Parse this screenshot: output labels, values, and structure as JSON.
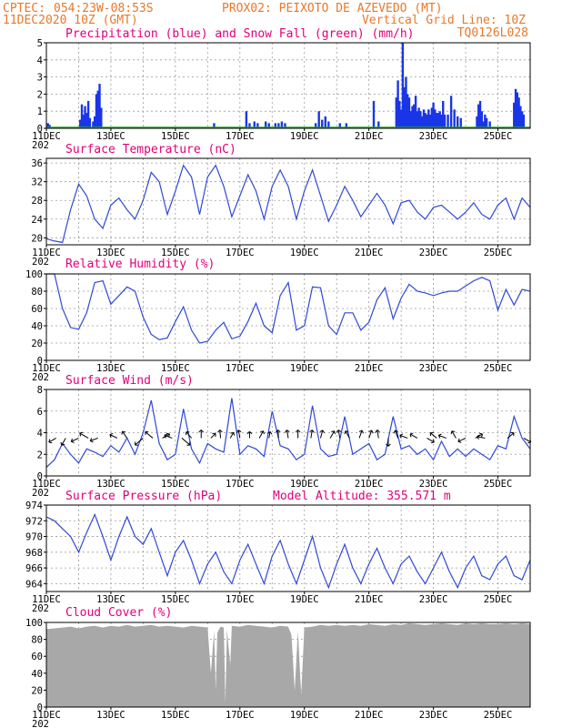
{
  "header": {
    "line1_left": "CPTEC:",
    "line1_coords": "054:23W-08:53S",
    "line1_station": "PROX02: PEIXOTO DE AZEVEDO (MT)",
    "line2_date": "11DEC2020 10Z (GMT)",
    "line2_grid": "Vertical Grid Line: 10Z",
    "line3_code": "TQ0126L028"
  },
  "x_axis": {
    "labels": [
      "11DEC",
      "13DEC",
      "15DEC",
      "17DEC",
      "19DEC",
      "21DEC",
      "23DEC",
      "25DEC"
    ],
    "year_stub": "202",
    "days": 15
  },
  "colors": {
    "precip": "#1a35e8",
    "snow": "#22aa22",
    "line": "#3048d8",
    "arrow": "#000000",
    "cloud": "#a8a8a8",
    "header": "#e8782a",
    "panel_title": "#e0007a"
  },
  "chart_data": [
    {
      "type": "bar",
      "title": "Precipitation (blue) and Snow Fall (green) (mm/h)",
      "ylim": [
        0,
        5
      ],
      "yticks": [
        0,
        1,
        2,
        3,
        4,
        5
      ],
      "series": [
        {
          "name": "Precipitation",
          "x": [
            0.05,
            0.1,
            1.05,
            1.1,
            1.15,
            1.2,
            1.25,
            1.3,
            1.35,
            1.45,
            1.5,
            1.55,
            1.6,
            1.65,
            1.7,
            5.2,
            6.2,
            6.3,
            6.45,
            6.55,
            6.8,
            6.9,
            7.1,
            7.2,
            7.3,
            7.4,
            8.35,
            8.45,
            8.55,
            8.65,
            8.75,
            9.1,
            9.3,
            10.15,
            10.3,
            10.85,
            10.9,
            10.95,
            11.0,
            11.05,
            11.1,
            11.15,
            11.2,
            11.25,
            11.3,
            11.35,
            11.4,
            11.45,
            11.5,
            11.55,
            11.6,
            11.65,
            11.7,
            11.75,
            11.8,
            11.85,
            11.9,
            11.95,
            12.0,
            12.05,
            12.1,
            12.15,
            12.2,
            12.25,
            12.3,
            12.35,
            12.45,
            12.55,
            12.65,
            12.75,
            12.85,
            13.35,
            13.4,
            13.45,
            13.5,
            13.55,
            13.6,
            13.65,
            13.75,
            14.5,
            14.55,
            14.6,
            14.65,
            14.7,
            14.75,
            14.8
          ],
          "values": [
            0.3,
            0.2,
            0.5,
            1.4,
            0.8,
            1.3,
            0.9,
            1.6,
            0.6,
            0.4,
            0.7,
            2.0,
            2.2,
            2.6,
            1.2,
            0.3,
            1.0,
            0.3,
            0.4,
            0.3,
            0.4,
            0.3,
            0.3,
            0.3,
            0.4,
            0.3,
            0.3,
            1.0,
            0.5,
            0.7,
            0.4,
            0.3,
            0.3,
            1.6,
            0.4,
            1.8,
            2.8,
            1.6,
            1.1,
            5.0,
            2.4,
            3.0,
            2.0,
            1.8,
            1.0,
            1.3,
            1.4,
            1.9,
            1.0,
            1.2,
            1.0,
            0.7,
            1.1,
            0.9,
            0.8,
            1.1,
            0.8,
            1.2,
            1.5,
            1.1,
            0.9,
            0.9,
            1.0,
            0.8,
            1.6,
            0.8,
            0.8,
            1.9,
            1.1,
            0.7,
            0.6,
            0.7,
            1.4,
            1.6,
            1.0,
            0.4,
            0.8,
            0.6,
            0.4,
            1.5,
            2.3,
            2.1,
            1.8,
            1.3,
            1.0,
            0.8
          ]
        },
        {
          "name": "Snow Fall",
          "constant": 0
        }
      ]
    },
    {
      "type": "line",
      "title": "Surface Temperature (nC)",
      "ylim": [
        18.5,
        37
      ],
      "yticks": [
        20,
        24,
        28,
        32,
        36
      ],
      "x": [
        0,
        0.25,
        0.5,
        0.75,
        1.0,
        1.25,
        1.5,
        1.75,
        2.0,
        2.25,
        2.5,
        2.75,
        3.0,
        3.25,
        3.5,
        3.75,
        4.0,
        4.25,
        4.5,
        4.75,
        5.0,
        5.25,
        5.5,
        5.75,
        6.0,
        6.25,
        6.5,
        6.75,
        7.0,
        7.25,
        7.5,
        7.75,
        8.0,
        8.25,
        8.5,
        8.75,
        9.0,
        9.25,
        9.5,
        9.75,
        10.0,
        10.25,
        10.5,
        10.75,
        11.0,
        11.25,
        11.5,
        11.75,
        12.0,
        12.25,
        12.5,
        12.75,
        13.0,
        13.25,
        13.5,
        13.75,
        14.0,
        14.25,
        14.5,
        14.75,
        15.0
      ],
      "values": [
        19.8,
        19.3,
        19.0,
        26.0,
        31.5,
        29.0,
        24.0,
        22.0,
        27.0,
        28.5,
        26.0,
        24.0,
        28.0,
        34.0,
        32.0,
        25.0,
        30.0,
        35.5,
        33.0,
        25.0,
        33.0,
        35.5,
        31.0,
        24.5,
        29.0,
        33.5,
        30.0,
        24.0,
        31.0,
        34.5,
        31.0,
        24.0,
        30.0,
        34.5,
        29.0,
        23.5,
        27.0,
        31.0,
        28.0,
        24.5,
        27.0,
        29.5,
        27.0,
        23.0,
        27.5,
        28.0,
        25.5,
        24.0,
        26.5,
        27.0,
        25.5,
        24.0,
        25.5,
        27.5,
        25.0,
        24.0,
        27.0,
        28.5,
        24.0,
        28.5,
        26.5
      ]
    },
    {
      "type": "line",
      "title": "Relative Humidity (%)",
      "ylim": [
        0,
        100
      ],
      "yticks": [
        0,
        20,
        40,
        60,
        80,
        100
      ],
      "x": [
        0,
        0.25,
        0.5,
        0.75,
        1.0,
        1.25,
        1.5,
        1.75,
        2.0,
        2.25,
        2.5,
        2.75,
        3.0,
        3.25,
        3.5,
        3.75,
        4.0,
        4.25,
        4.5,
        4.75,
        5.0,
        5.25,
        5.5,
        5.75,
        6.0,
        6.25,
        6.5,
        6.75,
        7.0,
        7.25,
        7.5,
        7.75,
        8.0,
        8.25,
        8.5,
        8.75,
        9.0,
        9.25,
        9.5,
        9.75,
        10.0,
        10.25,
        10.5,
        10.75,
        11.0,
        11.25,
        11.5,
        11.75,
        12.0,
        12.25,
        12.5,
        12.75,
        13.0,
        13.25,
        13.5,
        13.75,
        14.0,
        14.25,
        14.5,
        14.75,
        15.0
      ],
      "values": [
        100,
        100,
        60,
        38,
        36,
        55,
        90,
        92,
        65,
        75,
        85,
        80,
        50,
        30,
        24,
        26,
        45,
        62,
        35,
        20,
        22,
        35,
        44,
        25,
        28,
        45,
        66,
        40,
        32,
        75,
        90,
        35,
        40,
        85,
        84,
        40,
        30,
        55,
        55,
        35,
        44,
        70,
        84,
        48,
        72,
        88,
        80,
        78,
        75,
        78,
        80,
        80,
        86,
        92,
        96,
        92,
        58,
        82,
        64,
        82,
        80
      ]
    },
    {
      "type": "line",
      "title": "Surface Wind (m/s)",
      "ylim": [
        0,
        8
      ],
      "yticks": [
        0,
        2,
        4,
        6,
        8
      ],
      "x": [
        0,
        0.25,
        0.5,
        0.75,
        1.0,
        1.25,
        1.5,
        1.75,
        2.0,
        2.25,
        2.5,
        2.75,
        3.0,
        3.25,
        3.5,
        3.75,
        4.0,
        4.25,
        4.5,
        4.75,
        5.0,
        5.25,
        5.5,
        5.75,
        6.0,
        6.25,
        6.5,
        6.75,
        7.0,
        7.25,
        7.5,
        7.75,
        8.0,
        8.25,
        8.5,
        8.75,
        9.0,
        9.25,
        9.5,
        9.75,
        10.0,
        10.25,
        10.5,
        10.75,
        11.0,
        11.25,
        11.5,
        11.75,
        12.0,
        12.25,
        12.5,
        12.75,
        13.0,
        13.25,
        13.5,
        13.75,
        14.0,
        14.25,
        14.5,
        14.75,
        15.0
      ],
      "values": [
        0.8,
        1.5,
        3.0,
        2.0,
        1.2,
        2.5,
        2.2,
        1.8,
        2.8,
        2.2,
        3.5,
        2.0,
        4.0,
        7.0,
        3.0,
        1.5,
        2.0,
        6.2,
        2.5,
        1.2,
        3.0,
        2.5,
        2.2,
        7.2,
        2.0,
        2.8,
        2.5,
        1.8,
        6.0,
        2.8,
        2.5,
        1.5,
        2.0,
        6.5,
        2.5,
        1.8,
        2.0,
        5.5,
        2.0,
        2.5,
        3.0,
        1.5,
        2.0,
        5.5,
        2.5,
        2.8,
        2.0,
        2.5,
        1.5,
        3.2,
        1.8,
        2.5,
        1.8,
        2.5,
        2.0,
        1.5,
        2.8,
        2.5,
        5.5,
        3.5,
        2.5
      ]
    },
    {
      "type": "line",
      "title": "Surface Pressure (hPa)",
      "annotation": "Model Altitude: 355.571 m",
      "ylim": [
        963,
        974
      ],
      "yticks": [
        964,
        966,
        968,
        970,
        972,
        974
      ],
      "x": [
        0,
        0.25,
        0.5,
        0.75,
        1.0,
        1.25,
        1.5,
        1.75,
        2.0,
        2.25,
        2.5,
        2.75,
        3.0,
        3.25,
        3.5,
        3.75,
        4.0,
        4.25,
        4.5,
        4.75,
        5.0,
        5.25,
        5.5,
        5.75,
        6.0,
        6.25,
        6.5,
        6.75,
        7.0,
        7.25,
        7.5,
        7.75,
        8.0,
        8.25,
        8.5,
        8.75,
        9.0,
        9.25,
        9.5,
        9.75,
        10.0,
        10.25,
        10.5,
        10.75,
        11.0,
        11.25,
        11.5,
        11.75,
        12.0,
        12.25,
        12.5,
        12.75,
        13.0,
        13.25,
        13.5,
        13.75,
        14.0,
        14.25,
        14.5,
        14.75,
        15.0
      ],
      "values": [
        972.5,
        972.0,
        971.0,
        970.0,
        968.0,
        970.5,
        972.8,
        970.0,
        967.0,
        970.0,
        972.5,
        970.0,
        969.0,
        971.0,
        968.0,
        965.0,
        968.0,
        969.5,
        967.0,
        964.0,
        966.5,
        968.0,
        965.5,
        964.0,
        967.0,
        969.0,
        966.5,
        964.0,
        967.5,
        969.5,
        966.5,
        964.0,
        967.0,
        970.0,
        966.0,
        963.5,
        966.5,
        969.0,
        966.0,
        964.0,
        966.5,
        968.5,
        966.0,
        964.0,
        966.5,
        967.5,
        965.5,
        964.0,
        966.0,
        968.0,
        965.5,
        963.5,
        966.0,
        967.5,
        965.0,
        964.5,
        966.5,
        967.5,
        965.0,
        964.5,
        967.0
      ]
    },
    {
      "type": "area",
      "title": "Cloud Cover (%)",
      "ylim": [
        0,
        100
      ],
      "yticks": [
        0,
        20,
        40,
        60,
        80,
        100
      ],
      "x": [
        0,
        0.25,
        0.5,
        0.75,
        1.0,
        1.25,
        1.5,
        1.75,
        2.0,
        2.25,
        2.5,
        2.75,
        3.0,
        3.25,
        3.5,
        3.75,
        4.0,
        4.25,
        4.5,
        4.75,
        5.0,
        5.1,
        5.2,
        5.25,
        5.3,
        5.4,
        5.5,
        5.55,
        5.6,
        5.7,
        5.75,
        6.0,
        6.25,
        6.5,
        6.75,
        7.0,
        7.25,
        7.5,
        7.6,
        7.7,
        7.8,
        7.9,
        8.0,
        8.25,
        8.5,
        8.75,
        9.0,
        9.25,
        9.5,
        9.75,
        10.0,
        10.25,
        10.5,
        10.75,
        11.0,
        11.25,
        11.5,
        11.75,
        12.0,
        12.25,
        12.5,
        12.75,
        13.0,
        13.25,
        13.5,
        13.75,
        14.0,
        14.25,
        14.5,
        14.75,
        15.0
      ],
      "values": [
        92,
        93,
        94,
        95,
        93,
        95,
        96,
        94,
        96,
        95,
        97,
        95,
        96,
        97,
        95,
        96,
        95,
        94,
        96,
        95,
        94,
        40,
        90,
        20,
        88,
        95,
        94,
        5,
        92,
        50,
        96,
        95,
        97,
        96,
        95,
        94,
        96,
        95,
        85,
        20,
        90,
        15,
        94,
        95,
        97,
        96,
        97,
        96,
        97,
        96,
        98,
        97,
        96,
        98,
        97,
        99,
        98,
        97,
        98,
        99,
        98,
        97,
        99,
        98,
        99,
        98,
        98,
        99,
        98,
        99,
        98
      ]
    }
  ],
  "wind_vectors": {
    "x": [
      0.3,
      0.6,
      1.0,
      1.3,
      1.6,
      2.2,
      2.5,
      3.0,
      3.3,
      3.6,
      3.9,
      4.2,
      4.5,
      4.8,
      5.1,
      5.4,
      5.7,
      6.0,
      6.3,
      6.6,
      6.9,
      7.2,
      7.5,
      7.8,
      8.2,
      8.5,
      8.8,
      9.1,
      9.4,
      9.7,
      10.0,
      10.3,
      10.6,
      10.9,
      11.2,
      11.5,
      11.8,
      12.1,
      12.4,
      12.7,
      13.0,
      13.3,
      13.6,
      14.3,
      14.8
    ],
    "angle_deg": [
      -150,
      -120,
      -155,
      150,
      -160,
      155,
      125,
      -140,
      140,
      30,
      160,
      -40,
      130,
      90,
      45,
      95,
      60,
      100,
      90,
      60,
      80,
      95,
      100,
      90,
      80,
      75,
      60,
      100,
      120,
      70,
      70,
      100,
      -90,
      110,
      160,
      150,
      -30,
      140,
      160,
      120,
      -155,
      30,
      170,
      40,
      -30
    ],
    "mag": [
      1.0,
      1.0,
      1.0,
      1.2,
      1.0,
      1.0,
      1.0,
      1.3,
      1.2,
      1.0,
      1.0,
      1.3,
      1.0,
      1.0,
      0.8,
      1.0,
      0.8,
      1.0,
      0.8,
      1.0,
      0.8,
      1.0,
      1.0,
      1.0,
      1.0,
      1.0,
      1.0,
      1.0,
      1.0,
      1.0,
      1.0,
      1.0,
      1.0,
      1.0,
      1.0,
      1.0,
      1.0,
      1.0,
      1.0,
      1.0,
      1.0,
      1.0,
      1.0,
      1.0,
      1.0
    ]
  }
}
